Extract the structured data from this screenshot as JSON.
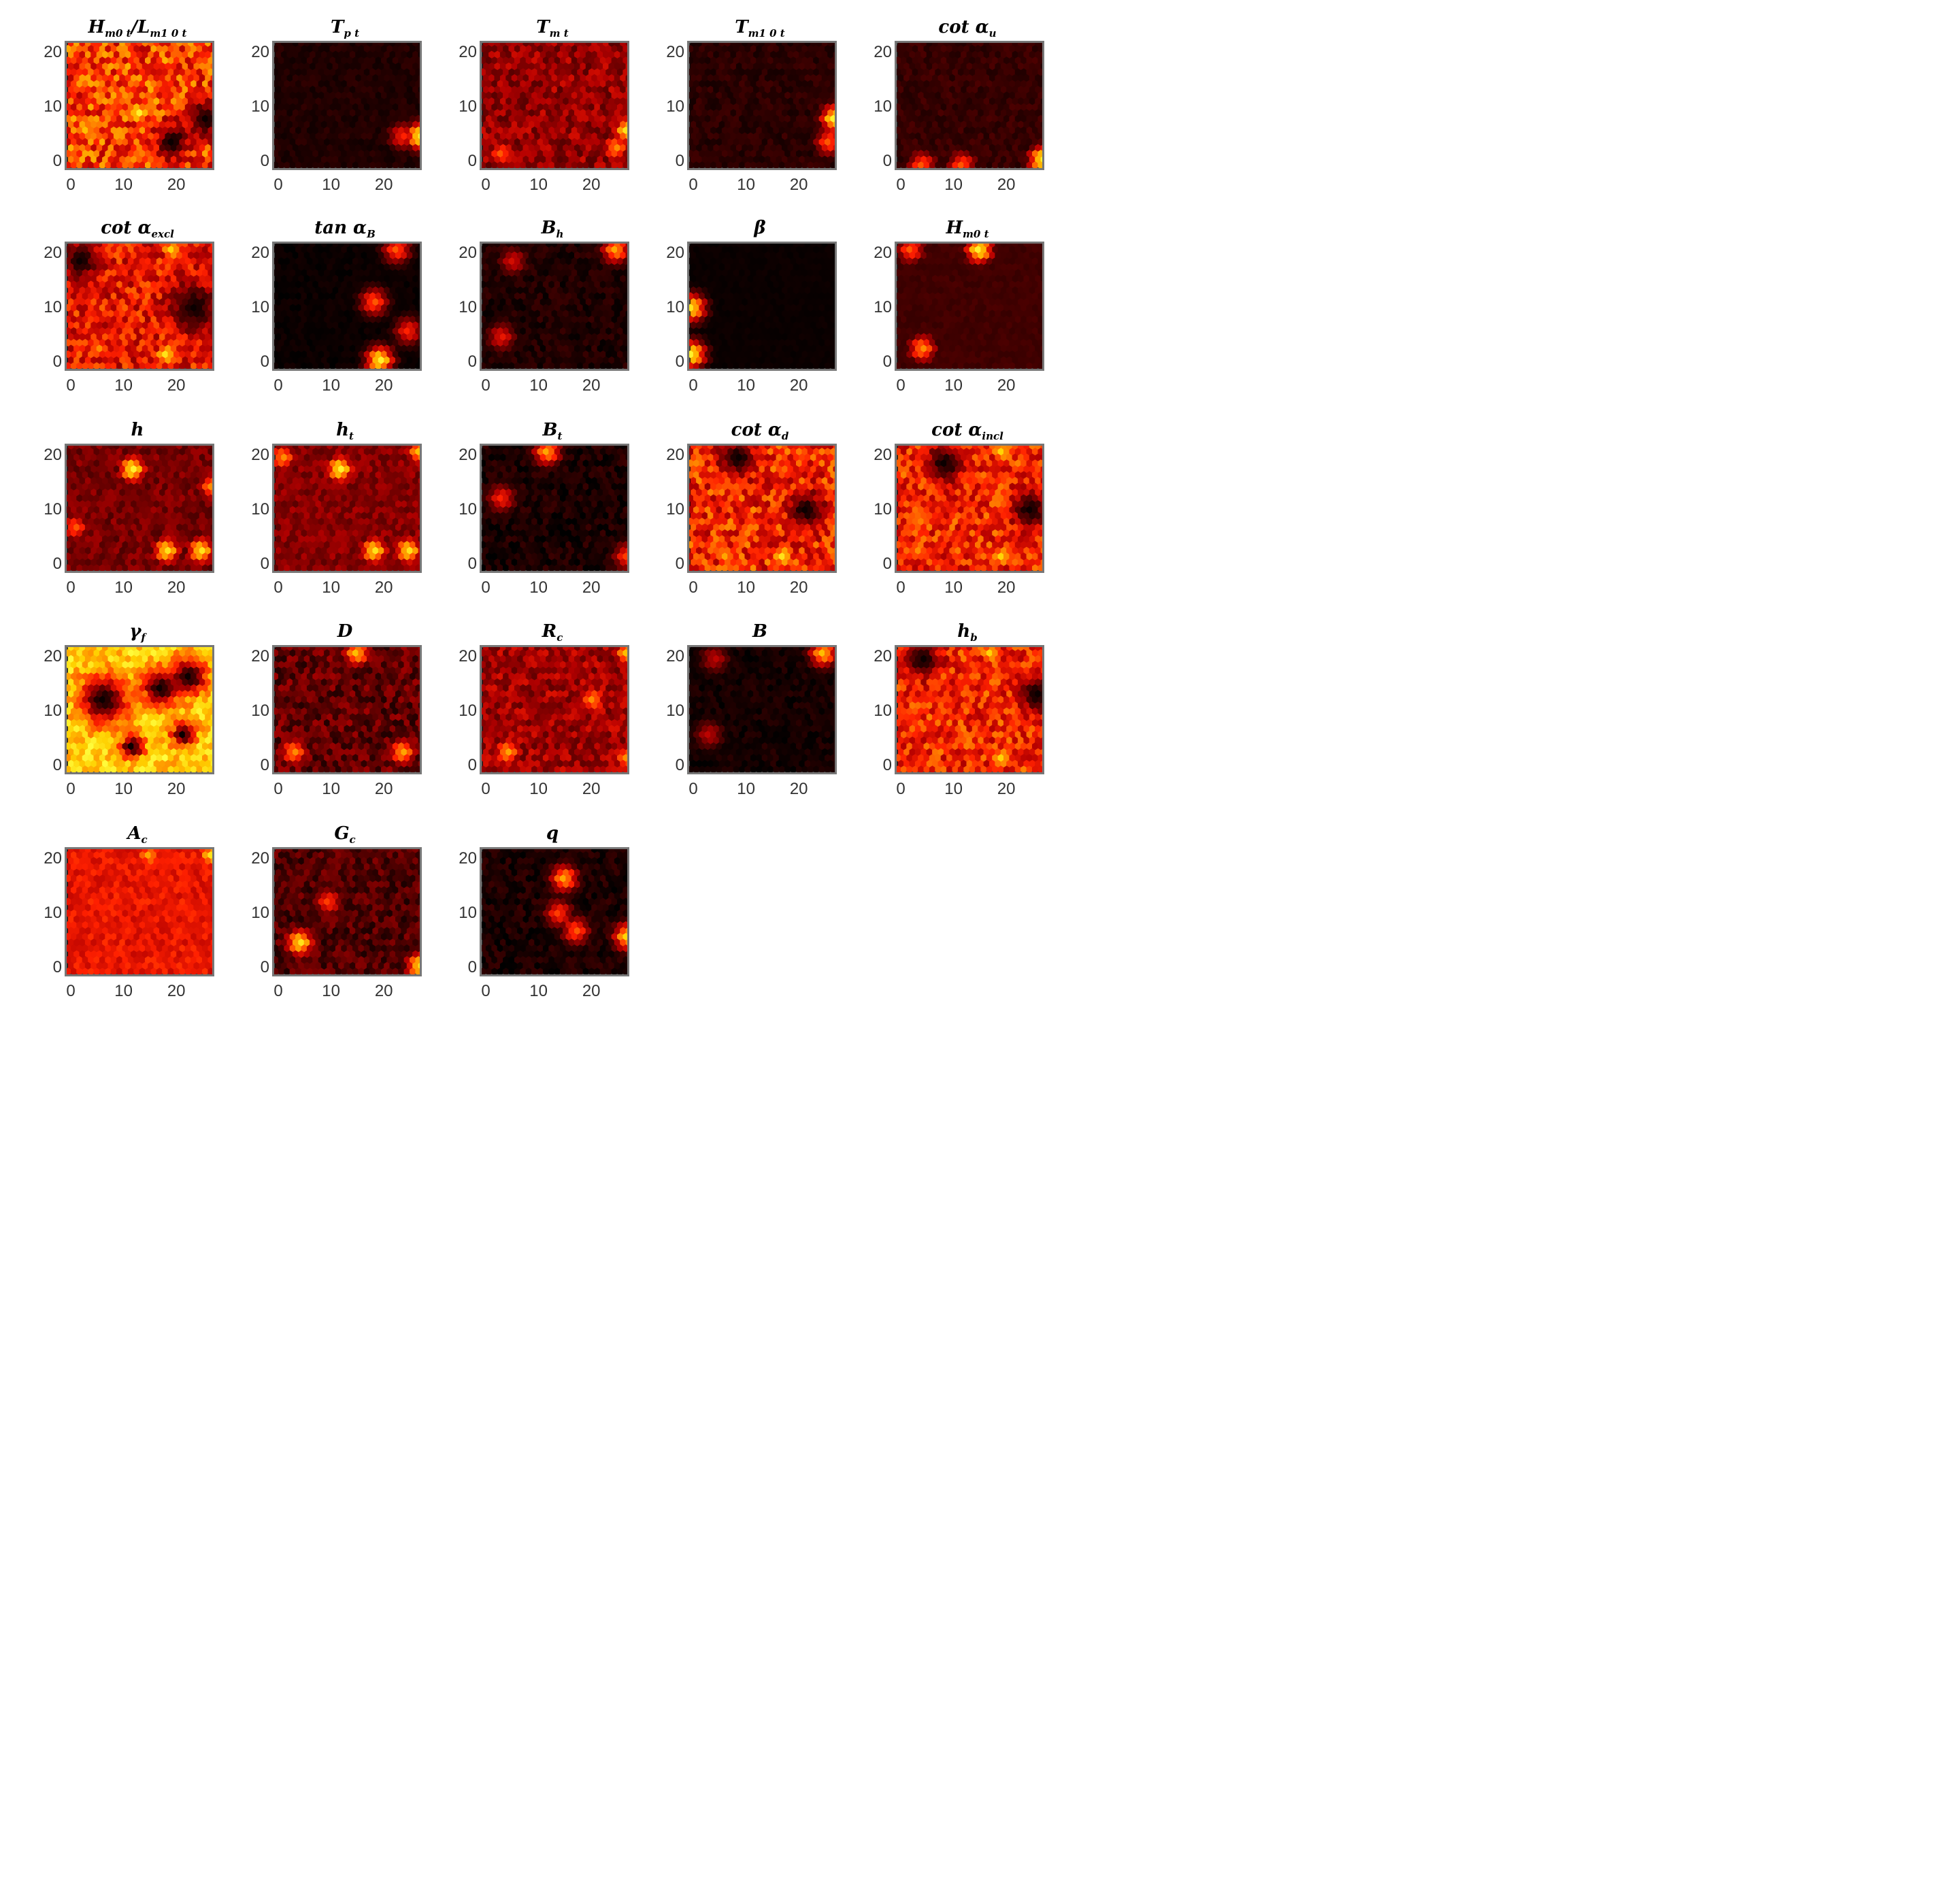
{
  "chart_data": {
    "type": "heatmap",
    "description_axes": {
      "xlim": [
        0,
        25
      ],
      "ylim": [
        0,
        21
      ]
    },
    "x_ticks": [
      "0",
      "10",
      "20"
    ],
    "y_ticks": [
      "0",
      "10",
      "20"
    ],
    "colormap": [
      "#000000",
      "#5a0000",
      "#b30000",
      "#ff2000",
      "#ff7a00",
      "#ffd000",
      "#ffff40"
    ],
    "panels": [
      {
        "id": "hm0t-lm10t",
        "title_main": "H",
        "title_sub": "m0 t",
        "title_tail": "/L",
        "title_sub2": "m1 0 t",
        "base": 0.55,
        "noise": 0.22,
        "hotspots": [
          {
            "x": 12,
            "y": 9,
            "v": 0.95
          },
          {
            "x": 3,
            "y": 6,
            "v": 0.8
          }
        ],
        "coldspots": [
          {
            "x": 24,
            "y": 8,
            "r": 3
          },
          {
            "x": 18,
            "y": 4,
            "r": 3
          }
        ]
      },
      {
        "id": "tpt",
        "title_main": "T",
        "title_sub": "p t",
        "base": 0.06,
        "noise": 0.03,
        "hotspots": [
          {
            "x": 25,
            "y": 5,
            "v": 0.95
          },
          {
            "x": 22,
            "y": 5,
            "v": 0.5
          }
        ],
        "coldspots": []
      },
      {
        "id": "tmt",
        "title_main": "T",
        "title_sub": "m t",
        "base": 0.28,
        "noise": 0.12,
        "hotspots": [
          {
            "x": 25,
            "y": 6,
            "v": 0.9
          },
          {
            "x": 3,
            "y": 2,
            "v": 0.6
          },
          {
            "x": 23,
            "y": 3,
            "v": 0.7
          }
        ],
        "coldspots": []
      },
      {
        "id": "tm10t",
        "title_main": "T",
        "title_sub": "m1 0 t",
        "base": 0.08,
        "noise": 0.04,
        "hotspots": [
          {
            "x": 25,
            "y": 8,
            "v": 0.95
          },
          {
            "x": 24,
            "y": 4,
            "v": 0.6
          }
        ],
        "coldspots": []
      },
      {
        "id": "cot-au",
        "title_main": "cot α",
        "title_sub": "u",
        "base": 0.1,
        "noise": 0.04,
        "hotspots": [
          {
            "x": 25,
            "y": 1,
            "v": 0.95
          },
          {
            "x": 4,
            "y": 0,
            "v": 0.6
          },
          {
            "x": 11,
            "y": 0,
            "v": 0.6
          }
        ],
        "coldspots": []
      },
      {
        "id": "cot-aexcl",
        "title_main": "cot α",
        "title_sub": "excl",
        "base": 0.45,
        "noise": 0.18,
        "hotspots": [
          {
            "x": 17,
            "y": 2,
            "v": 0.9
          },
          {
            "x": 5,
            "y": 3,
            "v": 0.7
          },
          {
            "x": 18,
            "y": 20,
            "v": 0.85
          }
        ],
        "coldspots": [
          {
            "x": 22,
            "y": 10,
            "r": 4
          },
          {
            "x": 2,
            "y": 18,
            "r": 3
          }
        ]
      },
      {
        "id": "tan-ab",
        "title_main": "tan α",
        "title_sub": "B",
        "base": 0.02,
        "noise": 0.02,
        "hotspots": [
          {
            "x": 18,
            "y": 1,
            "v": 0.95
          },
          {
            "x": 17,
            "y": 11,
            "v": 0.6
          },
          {
            "x": 21,
            "y": 20,
            "v": 0.6
          },
          {
            "x": 23,
            "y": 6,
            "v": 0.5
          }
        ],
        "coldspots": []
      },
      {
        "id": "bh",
        "title_main": "B",
        "title_sub": "h",
        "base": 0.06,
        "noise": 0.05,
        "hotspots": [
          {
            "x": 23,
            "y": 20,
            "v": 0.75
          },
          {
            "x": 3,
            "y": 5,
            "v": 0.45
          },
          {
            "x": 5,
            "y": 18,
            "v": 0.4
          }
        ],
        "coldspots": []
      },
      {
        "id": "beta",
        "title_main": "β",
        "title_sub": "",
        "base": 0.02,
        "noise": 0.01,
        "hotspots": [
          {
            "x": 0,
            "y": 10,
            "v": 0.9
          },
          {
            "x": 0,
            "y": 2,
            "v": 0.95
          }
        ],
        "coldspots": []
      },
      {
        "id": "hm0t",
        "title_main": "H",
        "title_sub": "m0 t",
        "base": 0.12,
        "noise": 0.02,
        "hotspots": [
          {
            "x": 4,
            "y": 3,
            "v": 0.7
          },
          {
            "x": 14,
            "y": 20,
            "v": 0.95
          },
          {
            "x": 2,
            "y": 20,
            "v": 0.6
          }
        ],
        "coldspots": []
      },
      {
        "id": "h",
        "title_main": "h",
        "title_sub": "",
        "base": 0.22,
        "noise": 0.08,
        "hotspots": [
          {
            "x": 11,
            "y": 17,
            "v": 0.95
          },
          {
            "x": 17,
            "y": 3,
            "v": 0.9
          },
          {
            "x": 23,
            "y": 3,
            "v": 0.9
          },
          {
            "x": 25,
            "y": 14,
            "v": 0.7
          },
          {
            "x": 1,
            "y": 7,
            "v": 0.6
          }
        ],
        "coldspots": []
      },
      {
        "id": "ht",
        "title_main": "h",
        "title_sub": "t",
        "base": 0.25,
        "noise": 0.08,
        "hotspots": [
          {
            "x": 11,
            "y": 17,
            "v": 0.95
          },
          {
            "x": 17,
            "y": 3,
            "v": 0.9
          },
          {
            "x": 23,
            "y": 3,
            "v": 0.9
          },
          {
            "x": 25,
            "y": 20,
            "v": 0.8
          },
          {
            "x": 1,
            "y": 19,
            "v": 0.7
          }
        ],
        "coldspots": []
      },
      {
        "id": "bt",
        "title_main": "B",
        "title_sub": "t",
        "base": 0.05,
        "noise": 0.06,
        "hotspots": [
          {
            "x": 11,
            "y": 20,
            "v": 0.75
          },
          {
            "x": 3,
            "y": 12,
            "v": 0.5
          },
          {
            "x": 25,
            "y": 2,
            "v": 0.55
          }
        ],
        "coldspots": []
      },
      {
        "id": "cot-ad",
        "title_main": "cot α",
        "title_sub": "d",
        "base": 0.5,
        "noise": 0.2,
        "hotspots": [
          {
            "x": 16,
            "y": 2,
            "v": 0.9
          },
          {
            "x": 6,
            "y": 2,
            "v": 0.75
          }
        ],
        "coldspots": [
          {
            "x": 20,
            "y": 10,
            "r": 3
          },
          {
            "x": 8,
            "y": 19,
            "r": 3
          }
        ]
      },
      {
        "id": "cot-aincl",
        "title_main": "cot α",
        "title_sub": "incl",
        "base": 0.5,
        "noise": 0.18,
        "hotspots": [
          {
            "x": 18,
            "y": 2,
            "v": 0.85
          },
          {
            "x": 3,
            "y": 3,
            "v": 0.7
          },
          {
            "x": 18,
            "y": 20,
            "v": 0.85
          }
        ],
        "coldspots": [
          {
            "x": 23,
            "y": 10,
            "r": 3
          },
          {
            "x": 8,
            "y": 18,
            "r": 3
          }
        ]
      },
      {
        "id": "gf",
        "title_main": "γ",
        "title_sub": "f",
        "base": 0.85,
        "noise": 0.15,
        "hotspots": [],
        "coldspots": [
          {
            "x": 6,
            "y": 12,
            "r": 4
          },
          {
            "x": 16,
            "y": 14,
            "r": 3
          },
          {
            "x": 21,
            "y": 16,
            "r": 3
          },
          {
            "x": 11,
            "y": 4,
            "r": 2
          },
          {
            "x": 20,
            "y": 6,
            "r": 2
          }
        ]
      },
      {
        "id": "d",
        "title_main": "D",
        "title_sub": "",
        "base": 0.18,
        "noise": 0.12,
        "hotspots": [
          {
            "x": 3,
            "y": 3,
            "v": 0.7
          },
          {
            "x": 22,
            "y": 3,
            "v": 0.75
          },
          {
            "x": 14,
            "y": 20,
            "v": 0.8
          }
        ],
        "coldspots": []
      },
      {
        "id": "rc",
        "title_main": "R",
        "title_sub": "c",
        "base": 0.3,
        "noise": 0.12,
        "hotspots": [
          {
            "x": 4,
            "y": 3,
            "v": 0.75
          },
          {
            "x": 19,
            "y": 12,
            "v": 0.7
          },
          {
            "x": 25,
            "y": 20,
            "v": 0.8
          },
          {
            "x": 25,
            "y": 2,
            "v": 0.7
          }
        ],
        "coldspots": []
      },
      {
        "id": "b",
        "title_main": "B",
        "title_sub": "",
        "base": 0.04,
        "noise": 0.04,
        "hotspots": [
          {
            "x": 23,
            "y": 20,
            "v": 0.8
          },
          {
            "x": 3,
            "y": 6,
            "v": 0.35
          },
          {
            "x": 4,
            "y": 19,
            "v": 0.35
          }
        ],
        "coldspots": []
      },
      {
        "id": "hb",
        "title_main": "h",
        "title_sub": "b",
        "base": 0.5,
        "noise": 0.18,
        "hotspots": [
          {
            "x": 18,
            "y": 2,
            "v": 0.85
          },
          {
            "x": 16,
            "y": 20,
            "v": 0.85
          }
        ],
        "coldspots": [
          {
            "x": 24,
            "y": 13,
            "r": 3
          },
          {
            "x": 4,
            "y": 19,
            "r": 3
          }
        ]
      },
      {
        "id": "ac",
        "title_main": "A",
        "title_sub": "c",
        "base": 0.45,
        "noise": 0.08,
        "hotspots": [
          {
            "x": 25,
            "y": 20,
            "v": 0.9
          },
          {
            "x": 14,
            "y": 20,
            "v": 0.75
          }
        ],
        "coldspots": []
      },
      {
        "id": "gc",
        "title_main": "G",
        "title_sub": "c",
        "base": 0.15,
        "noise": 0.1,
        "hotspots": [
          {
            "x": 4,
            "y": 5,
            "v": 0.9
          },
          {
            "x": 25,
            "y": 1,
            "v": 0.9
          },
          {
            "x": 9,
            "y": 12,
            "v": 0.55
          }
        ],
        "coldspots": []
      },
      {
        "id": "q",
        "title_main": "q",
        "title_sub": "",
        "base": 0.05,
        "noise": 0.06,
        "hotspots": [
          {
            "x": 14,
            "y": 16,
            "v": 0.75
          },
          {
            "x": 16,
            "y": 7,
            "v": 0.6
          },
          {
            "x": 25,
            "y": 6,
            "v": 0.85
          },
          {
            "x": 13,
            "y": 10,
            "v": 0.55
          }
        ],
        "coldspots": []
      }
    ]
  }
}
